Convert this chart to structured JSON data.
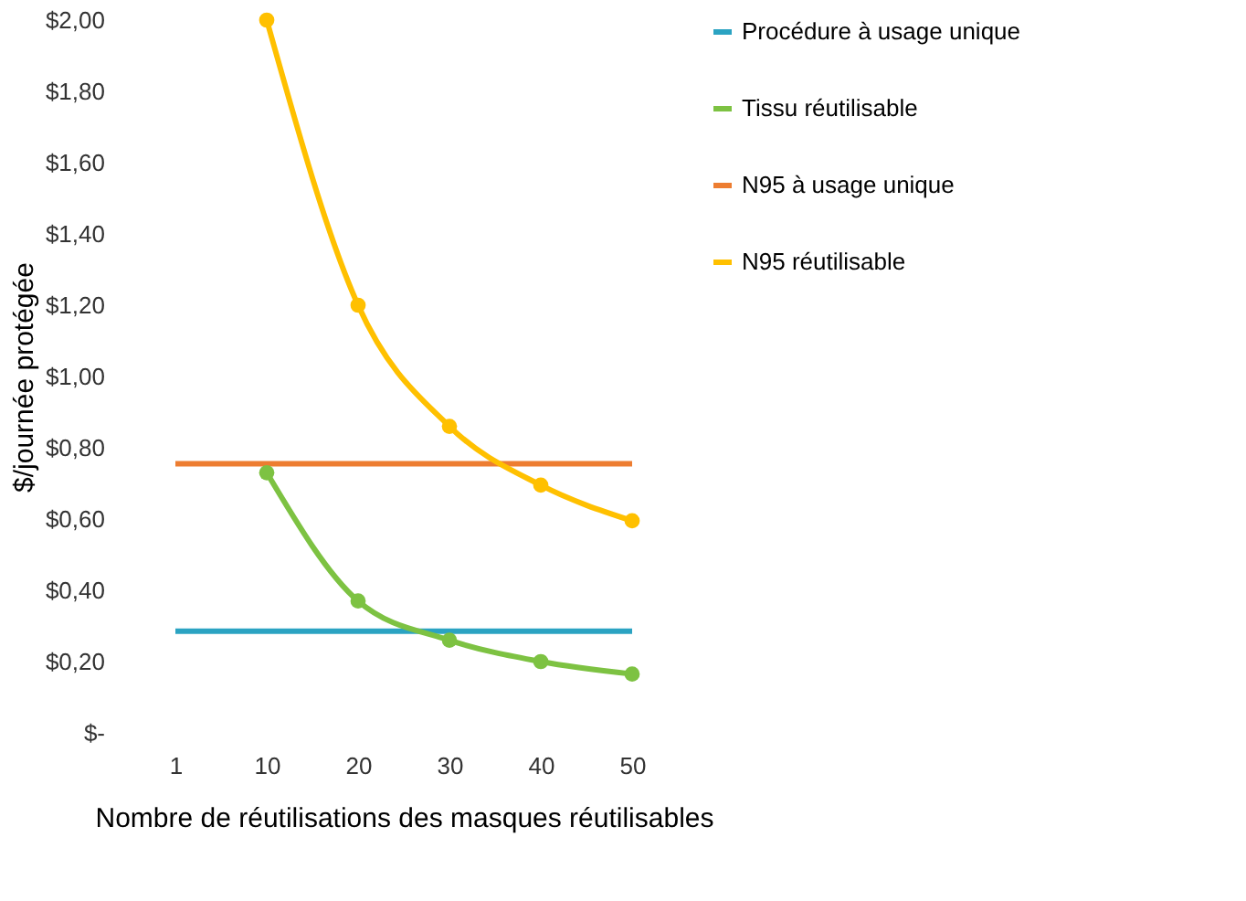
{
  "chart_data": {
    "type": "line",
    "xlabel": "Nombre de réutilisations des masques réutilisables",
    "ylabel": "$/journée protégée",
    "categories": [
      "1",
      "10",
      "20",
      "30",
      "40",
      "50"
    ],
    "series": [
      {
        "name": "Procédure à usage unique",
        "color": "#2ba3c2",
        "marker": "none",
        "values": [
          0.285,
          0.285,
          0.285,
          0.285,
          0.285,
          0.285
        ]
      },
      {
        "name": "Tissu réutilisable",
        "color": "#7dc242",
        "marker": "circle",
        "values": [
          null,
          0.73,
          0.37,
          0.26,
          0.2,
          0.165
        ]
      },
      {
        "name": "N95 à usage unique",
        "color": "#ed7d31",
        "marker": "none",
        "values": [
          0.755,
          0.755,
          0.755,
          0.755,
          0.755,
          0.755
        ]
      },
      {
        "name": "N95 réutilisable",
        "color": "#ffc000",
        "marker": "circle",
        "values": [
          null,
          2.0,
          1.2,
          0.86,
          0.695,
          0.595
        ]
      }
    ],
    "ylim": [
      0,
      2.0
    ],
    "yticks": [
      {
        "value": 0,
        "label": "$-"
      },
      {
        "value": 0.2,
        "label": "$0,20"
      },
      {
        "value": 0.4,
        "label": "$0,40"
      },
      {
        "value": 0.6,
        "label": "$0,60"
      },
      {
        "value": 0.8,
        "label": "$0,80"
      },
      {
        "value": 1.0,
        "label": "$1,00"
      },
      {
        "value": 1.2,
        "label": "$1,20"
      },
      {
        "value": 1.4,
        "label": "$1,40"
      },
      {
        "value": 1.6,
        "label": "$1,60"
      },
      {
        "value": 1.8,
        "label": "$1,80"
      },
      {
        "value": 2.0,
        "label": "$2,00"
      }
    ],
    "grid": false,
    "legend": "right",
    "line_style": "solid"
  }
}
